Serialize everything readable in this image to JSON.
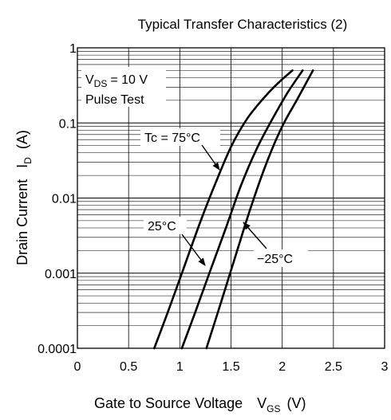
{
  "chart_data": {
    "type": "line",
    "title": "Typical Transfer Characteristics (2)",
    "xlabel": "Gate to Source Voltage",
    "xlabel_symbol": "V",
    "xlabel_symbol_sub": "GS",
    "xlabel_unit": "(V)",
    "ylabel": "Drain Current",
    "ylabel_symbol": "I",
    "ylabel_symbol_sub": "D",
    "ylabel_unit": "(A)",
    "xlim": [
      0,
      3
    ],
    "ylim": [
      0.0001,
      1
    ],
    "y_scale": "log",
    "grid": true,
    "x_ticks": [
      0,
      0.5,
      1,
      1.5,
      2,
      2.5,
      3
    ],
    "x_tick_labels": [
      "0",
      "0.5",
      "1",
      "1.5",
      "2",
      "2.5",
      "3"
    ],
    "y_ticks": [
      0.0001,
      0.001,
      0.01,
      0.1,
      1
    ],
    "y_tick_labels": [
      "0.0001",
      "0.001",
      "0.01",
      "0.1",
      "1"
    ],
    "conditions": {
      "vds_symbol": "V",
      "vds_sub": "DS",
      "vds_value": "= 10 V",
      "pulse": "Pulse Test"
    },
    "series": [
      {
        "name": "Tc = 75°C",
        "x": [
          0.75,
          0.9,
          1.05,
          1.2,
          1.35,
          1.5,
          1.65,
          1.8,
          1.95,
          2.1
        ],
        "y": [
          0.0001,
          0.00035,
          0.0013,
          0.0048,
          0.016,
          0.048,
          0.11,
          0.2,
          0.33,
          0.5
        ]
      },
      {
        "name": "25°C",
        "x": [
          1.02,
          1.15,
          1.3,
          1.45,
          1.6,
          1.75,
          1.9,
          2.05,
          2.2
        ],
        "y": [
          0.0001,
          0.0003,
          0.0011,
          0.004,
          0.015,
          0.045,
          0.11,
          0.25,
          0.5
        ]
      },
      {
        "name": "−25°C",
        "x": [
          1.26,
          1.4,
          1.55,
          1.7,
          1.85,
          2.0,
          2.15,
          2.3
        ],
        "y": [
          0.0001,
          0.0004,
          0.0018,
          0.008,
          0.03,
          0.09,
          0.21,
          0.5
        ]
      }
    ],
    "annotations": [
      "Tc = 75°C",
      "25°C",
      "−25°C"
    ]
  }
}
